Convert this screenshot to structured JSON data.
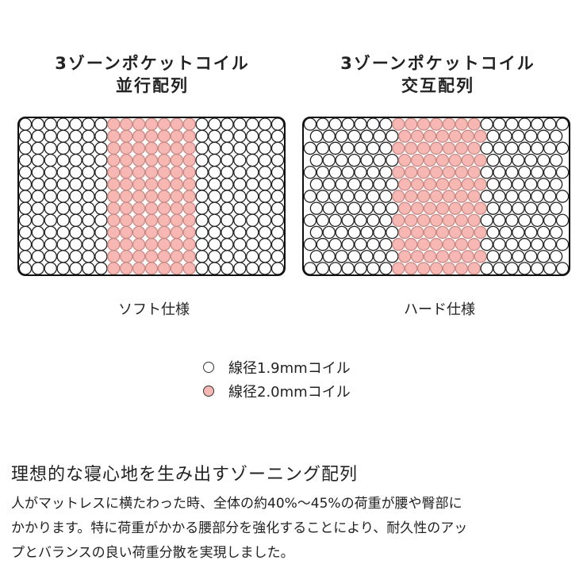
{
  "diagrams": [
    {
      "title_line1": "3ゾーンポケットコイル",
      "title_line2": "並行配列",
      "label": "ソフト仕様",
      "arrangement": "parallel",
      "columns": 21,
      "rows": 13,
      "pink_columns": [
        7,
        13
      ]
    },
    {
      "title_line1": "3ゾーンポケットコイル",
      "title_line2": "交互配列",
      "label": "ハード仕様",
      "arrangement": "alternating",
      "columns": 21,
      "rows": 13,
      "pink_columns": [
        7,
        13
      ]
    }
  ],
  "legend": [
    {
      "label": "線径1.9mmコイル",
      "color": "#ffffff"
    },
    {
      "label": "線径2.0mmコイル",
      "color": "#f7b8b4"
    }
  ],
  "heading": "理想的な寝心地を生み出すゾーニング配列",
  "body_lines": [
    "人がマットレスに横たわった時、全体の約40%〜45%の荷重が腰や臀部に",
    "かかります。特に荷重がかかる腰部分を強化することにより、耐久性のアッ",
    "プとバランスの良い荷重分散を実現しました。"
  ],
  "colors": {
    "pink": "#f7b8b4",
    "outline": "#111111"
  }
}
